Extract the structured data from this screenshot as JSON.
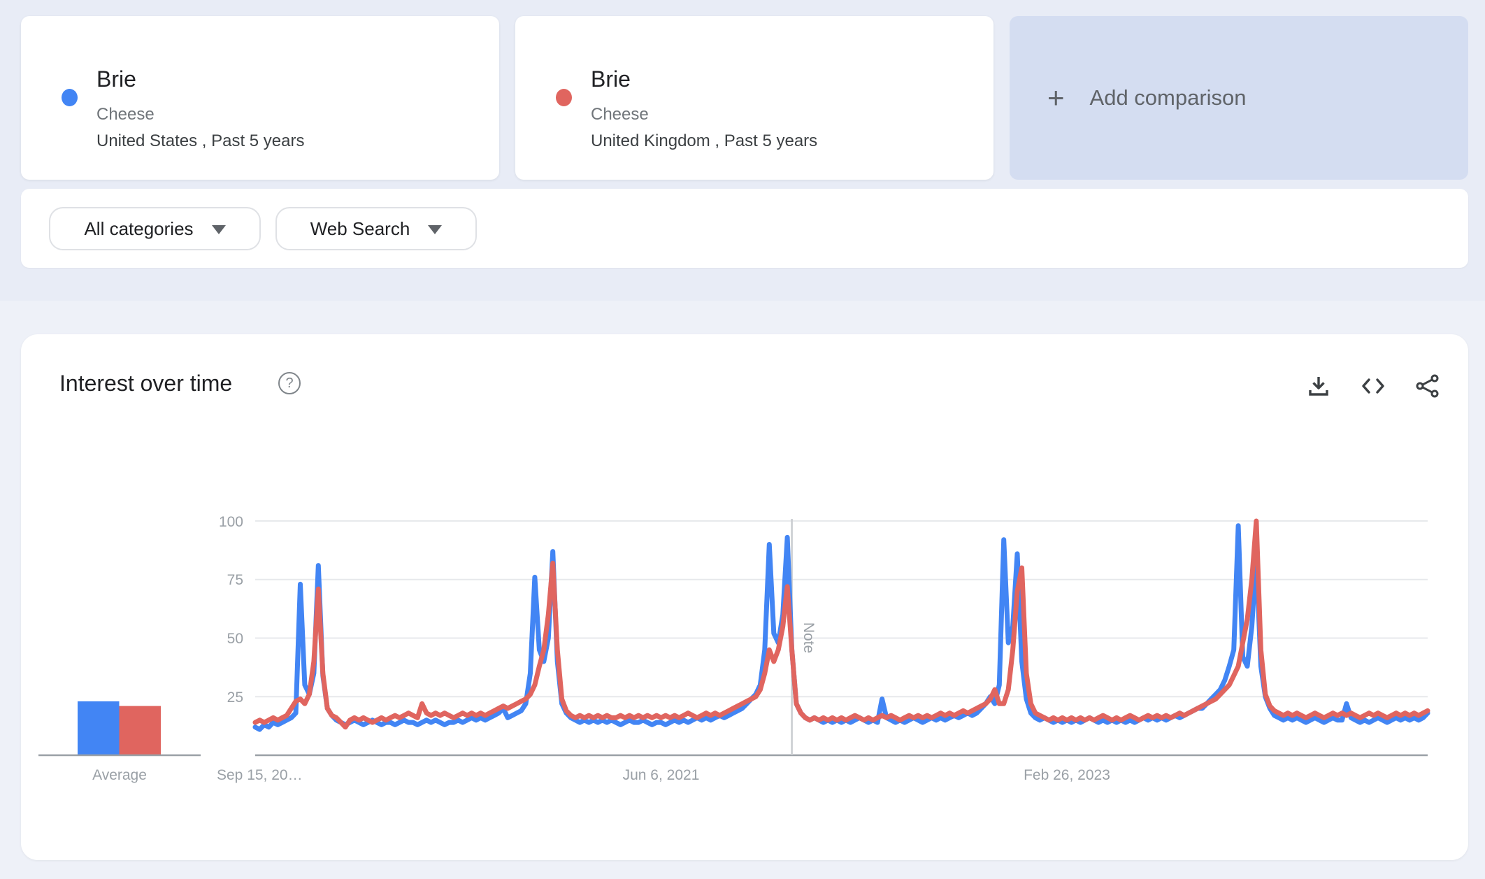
{
  "cards": [
    {
      "term": "Brie",
      "topic": "Cheese",
      "scope": "United States , Past 5 years",
      "color": "#4285f4"
    },
    {
      "term": "Brie",
      "topic": "Cheese",
      "scope": "United Kingdom , Past 5 years",
      "color": "#e0655f"
    }
  ],
  "add_comparison": {
    "plus": "+",
    "label": "Add comparison"
  },
  "filters": {
    "category": "All categories",
    "search_type": "Web Search"
  },
  "chart_header": {
    "title": "Interest over time",
    "help_glyph": "?"
  },
  "chart_data": {
    "type": "line",
    "title": "Interest over time",
    "xlabel": "",
    "ylabel": "",
    "ylim": [
      0,
      100
    ],
    "grid": true,
    "legend_position": "none",
    "x_unit": "weeks since Sep 15, 2019",
    "ytick_labels": [
      "100",
      "75",
      "50",
      "25"
    ],
    "xticks": [
      {
        "week": 0,
        "label": "Sep 15, 20…"
      },
      {
        "week": 90,
        "label": "Jun 6, 2021"
      },
      {
        "week": 180,
        "label": "Feb 26, 2023"
      }
    ],
    "note": {
      "week": 119,
      "label": "Note"
    },
    "average": {
      "label": "Average",
      "values": [
        23,
        21
      ]
    },
    "series": [
      {
        "name": "Brie (United States)",
        "color": "#4285f4",
        "values": [
          12,
          11,
          13,
          12,
          14,
          13,
          14,
          15,
          16,
          18,
          73,
          30,
          26,
          35,
          81,
          34,
          20,
          17,
          15,
          14,
          13,
          14,
          15,
          14,
          13,
          14,
          15,
          14,
          13,
          14,
          14,
          13,
          14,
          15,
          14,
          14,
          13,
          14,
          15,
          14,
          15,
          14,
          13,
          14,
          14,
          15,
          14,
          15,
          16,
          15,
          16,
          15,
          16,
          17,
          18,
          20,
          16,
          17,
          18,
          19,
          22,
          35,
          76,
          45,
          40,
          50,
          87,
          40,
          22,
          18,
          16,
          15,
          14,
          15,
          14,
          15,
          14,
          15,
          14,
          15,
          14,
          13,
          14,
          15,
          14,
          14,
          15,
          14,
          13,
          14,
          14,
          13,
          14,
          15,
          14,
          15,
          14,
          15,
          16,
          15,
          16,
          15,
          16,
          17,
          16,
          17,
          18,
          19,
          20,
          22,
          24,
          26,
          30,
          45,
          90,
          52,
          48,
          60,
          93,
          45,
          22,
          18,
          16,
          15,
          16,
          15,
          14,
          15,
          14,
          15,
          14,
          15,
          14,
          15,
          16,
          15,
          14,
          15,
          14,
          24,
          16,
          15,
          14,
          15,
          14,
          15,
          16,
          15,
          14,
          15,
          16,
          15,
          16,
          15,
          16,
          17,
          16,
          17,
          18,
          17,
          18,
          20,
          22,
          25,
          22,
          30,
          92,
          48,
          55,
          86,
          40,
          24,
          18,
          16,
          15,
          16,
          15,
          14,
          15,
          14,
          15,
          14,
          15,
          14,
          15,
          16,
          15,
          14,
          15,
          14,
          15,
          14,
          15,
          14,
          15,
          14,
          15,
          16,
          15,
          16,
          15,
          16,
          15,
          16,
          17,
          16,
          17,
          18,
          19,
          20,
          20,
          22,
          24,
          26,
          28,
          32,
          38,
          45,
          98,
          42,
          38,
          55,
          85,
          38,
          25,
          20,
          17,
          16,
          15,
          16,
          15,
          16,
          15,
          14,
          15,
          16,
          15,
          14,
          15,
          16,
          15,
          15,
          22,
          16,
          15,
          14,
          15,
          14,
          15,
          16,
          15,
          14,
          15,
          16,
          15,
          16,
          15,
          16,
          15,
          16,
          18
        ]
      },
      {
        "name": "Brie (United Kingdom)",
        "color": "#e0655f",
        "values": [
          14,
          15,
          14,
          15,
          16,
          15,
          16,
          17,
          20,
          23,
          24,
          22,
          26,
          40,
          71,
          35,
          20,
          17,
          16,
          14,
          12,
          15,
          16,
          15,
          16,
          15,
          14,
          15,
          16,
          15,
          16,
          17,
          16,
          17,
          18,
          17,
          16,
          22,
          18,
          17,
          18,
          17,
          18,
          17,
          16,
          17,
          18,
          17,
          18,
          17,
          18,
          17,
          18,
          19,
          20,
          21,
          20,
          21,
          22,
          23,
          24,
          26,
          30,
          38,
          45,
          60,
          82,
          45,
          24,
          19,
          17,
          16,
          17,
          16,
          17,
          16,
          17,
          16,
          17,
          16,
          16,
          17,
          16,
          17,
          16,
          17,
          16,
          17,
          16,
          17,
          16,
          17,
          16,
          17,
          16,
          17,
          18,
          17,
          16,
          17,
          18,
          17,
          18,
          17,
          18,
          19,
          20,
          21,
          22,
          23,
          24,
          25,
          28,
          35,
          45,
          40,
          45,
          55,
          72,
          45,
          22,
          18,
          16,
          15,
          16,
          15,
          16,
          15,
          16,
          15,
          16,
          15,
          16,
          17,
          16,
          15,
          16,
          15,
          16,
          17,
          16,
          17,
          16,
          15,
          16,
          17,
          16,
          17,
          16,
          17,
          16,
          17,
          18,
          17,
          18,
          17,
          18,
          19,
          18,
          19,
          20,
          21,
          22,
          24,
          28,
          22,
          22,
          28,
          45,
          70,
          80,
          35,
          22,
          18,
          17,
          16,
          15,
          16,
          15,
          16,
          15,
          16,
          15,
          16,
          15,
          16,
          15,
          16,
          17,
          16,
          15,
          16,
          15,
          16,
          17,
          16,
          15,
          16,
          17,
          16,
          17,
          16,
          17,
          16,
          17,
          18,
          17,
          18,
          19,
          20,
          21,
          22,
          23,
          24,
          26,
          28,
          30,
          34,
          38,
          48,
          58,
          75,
          100,
          45,
          26,
          21,
          19,
          18,
          17,
          18,
          17,
          18,
          17,
          16,
          17,
          18,
          17,
          16,
          17,
          18,
          17,
          18,
          17,
          18,
          17,
          16,
          17,
          18,
          17,
          18,
          17,
          16,
          17,
          18,
          17,
          18,
          17,
          18,
          17,
          18,
          19
        ]
      }
    ]
  }
}
